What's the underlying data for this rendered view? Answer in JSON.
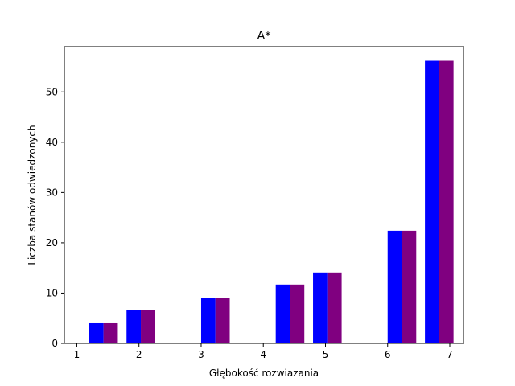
{
  "chart_data": {
    "type": "bar",
    "title": "A*",
    "xlabel": "Głębokość rozwiazania",
    "ylabel": "Liczba stanów odwiedzonych",
    "xlim": [
      0.8,
      7.22
    ],
    "ylim": [
      0,
      59
    ],
    "xticks": [
      1,
      2,
      3,
      4,
      5,
      6,
      7
    ],
    "yticks": [
      0,
      10,
      20,
      30,
      40,
      50
    ],
    "grid": false,
    "series": [
      {
        "color": "#0000ff",
        "bars": [
          {
            "x": 1.2,
            "width": 0.23,
            "value": 4
          },
          {
            "x": 1.8,
            "width": 0.23,
            "value": 6.6
          },
          {
            "x": 3.0,
            "width": 0.23,
            "value": 9.0
          },
          {
            "x": 4.2,
            "width": 0.23,
            "value": 11.7
          },
          {
            "x": 4.8,
            "width": 0.23,
            "value": 14.1
          },
          {
            "x": 6.0,
            "width": 0.23,
            "value": 22.4
          },
          {
            "x": 6.6,
            "width": 0.23,
            "value": 56.2
          }
        ]
      },
      {
        "color": "#800080",
        "bars": [
          {
            "x": 1.43,
            "width": 0.23,
            "value": 4
          },
          {
            "x": 2.03,
            "width": 0.23,
            "value": 6.6
          },
          {
            "x": 3.23,
            "width": 0.23,
            "value": 9.0
          },
          {
            "x": 4.43,
            "width": 0.23,
            "value": 11.7
          },
          {
            "x": 5.03,
            "width": 0.23,
            "value": 14.1
          },
          {
            "x": 6.23,
            "width": 0.23,
            "value": 22.4
          },
          {
            "x": 6.83,
            "width": 0.23,
            "value": 56.2
          }
        ]
      }
    ]
  }
}
